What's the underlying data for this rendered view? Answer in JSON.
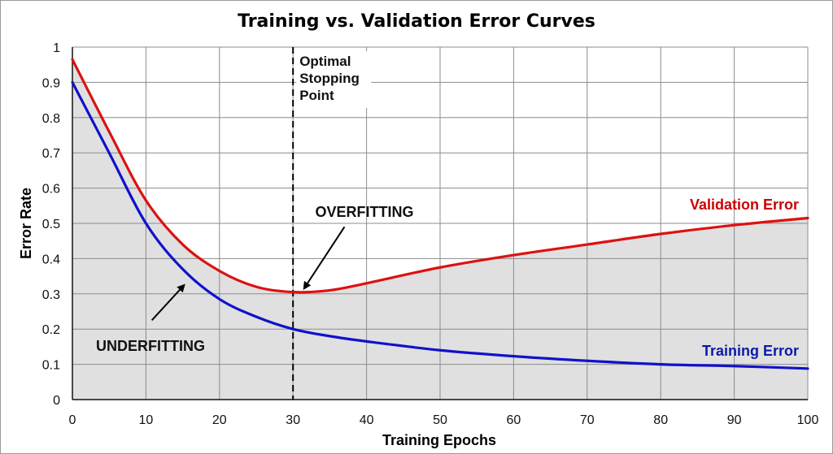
{
  "chart_data": {
    "type": "line",
    "title": "Training vs. Validation Error Curves",
    "xlabel": "Training Epochs",
    "ylabel": "Error Rate",
    "xlim": [
      0,
      100
    ],
    "ylim": [
      0,
      1
    ],
    "grid": true,
    "x_ticks": [
      "0",
      "10",
      "20",
      "30",
      "40",
      "50",
      "60",
      "70",
      "80",
      "90",
      "100"
    ],
    "y_ticks": [
      "0",
      "0.1",
      "0.2",
      "0.3",
      "0.4",
      "0.5",
      "0.6",
      "0.7",
      "0.8",
      "0.9",
      "1"
    ],
    "series": [
      {
        "name": "Validation Error",
        "color": "#dd1111",
        "x": [
          0,
          5,
          10,
          15,
          20,
          25,
          30,
          35,
          40,
          50,
          60,
          70,
          80,
          90,
          100
        ],
        "values": [
          0.965,
          0.76,
          0.565,
          0.44,
          0.365,
          0.32,
          0.305,
          0.31,
          0.33,
          0.375,
          0.41,
          0.44,
          0.47,
          0.495,
          0.515
        ]
      },
      {
        "name": "Training Error",
        "color": "#1111cc",
        "x": [
          0,
          5,
          10,
          15,
          20,
          25,
          30,
          35,
          40,
          50,
          60,
          70,
          80,
          90,
          100
        ],
        "values": [
          0.9,
          0.7,
          0.5,
          0.37,
          0.285,
          0.235,
          0.2,
          0.18,
          0.165,
          0.14,
          0.123,
          0.11,
          0.1,
          0.095,
          0.088
        ]
      }
    ],
    "fill_under": "Validation Error",
    "fill_color": "#e0e0e0",
    "vertical_line": {
      "x": 30,
      "style": "dashed",
      "label": [
        "Optimal",
        "Stopping",
        "Point"
      ]
    },
    "annotations": [
      {
        "text": "OVERFITTING",
        "arrow_to": [
          31.5,
          0.315
        ],
        "arrow_from": [
          37,
          0.49
        ]
      },
      {
        "text": "UNDERFITTING",
        "arrow_to": [
          15.2,
          0.325
        ],
        "arrow_from": [
          10.8,
          0.225
        ]
      }
    ],
    "series_labels": [
      {
        "text": "Validation Error",
        "color": "#cc0000"
      },
      {
        "text": "Training Error",
        "color": "#0a1aa8"
      }
    ]
  }
}
